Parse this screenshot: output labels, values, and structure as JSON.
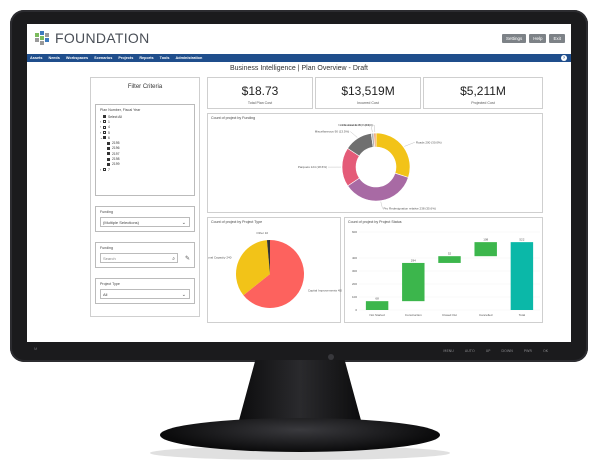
{
  "app": {
    "logo_text": "FOUNDATION",
    "top_buttons": [
      "Settings",
      "Help",
      "Exit"
    ],
    "nav": [
      "Assets",
      "Needs",
      "Workspaces",
      "Scenarios",
      "Projects",
      "Reports",
      "Tools",
      "Administration"
    ],
    "help_icon": "?"
  },
  "monitor": {
    "logo": "M",
    "buttons": [
      "MENU",
      "AUTO",
      "UP",
      "DOWN",
      "PWR",
      "OK"
    ]
  },
  "page": {
    "title": "Business Intelligence | Plan Overview - Draft"
  },
  "filter": {
    "title": "Filter Criteria",
    "tree_label": "Plan Number, Fiscal Year",
    "tree": [
      {
        "label": "Select All",
        "indent": 0,
        "checked": true,
        "arrow": ""
      },
      {
        "label": "1",
        "indent": 0,
        "checked": false,
        "arrow": "›"
      },
      {
        "label": "4",
        "indent": 0,
        "checked": false,
        "arrow": "›"
      },
      {
        "label": "5",
        "indent": 0,
        "checked": false,
        "arrow": "›"
      },
      {
        "label": "6",
        "indent": 0,
        "checked": true,
        "arrow": "⌄"
      },
      {
        "label": "2195",
        "indent": 1,
        "checked": true,
        "arrow": ""
      },
      {
        "label": "2196",
        "indent": 1,
        "checked": true,
        "arrow": ""
      },
      {
        "label": "2197",
        "indent": 1,
        "checked": true,
        "arrow": ""
      },
      {
        "label": "2198",
        "indent": 1,
        "checked": true,
        "arrow": ""
      },
      {
        "label": "2199",
        "indent": 1,
        "checked": true,
        "arrow": ""
      },
      {
        "label": "7",
        "indent": 0,
        "checked": false,
        "arrow": "›"
      }
    ],
    "funding_label": "Funding",
    "funding_value": "(Multiple Selections)",
    "funding_search_label": "Funding",
    "search_placeholder": "Search",
    "project_type_label": "Project Type",
    "project_type_value": "All"
  },
  "kpis": [
    {
      "value": "$18.73",
      "label": "Total Plan Cost"
    },
    {
      "value": "$13,519M",
      "label": "Incurred Cost"
    },
    {
      "value": "$5,211M",
      "label": "Projected Cost"
    }
  ],
  "charts": {
    "funding_title": "Count of project by Funding",
    "type_title": "Count of project by Project Type",
    "status_title": "Count of project by Project Status"
  },
  "chart_data": [
    {
      "type": "pie",
      "title": "Count of project by Funding",
      "labels": [
        "Roads",
        "Pro Redesignation relative",
        "Parquets",
        "Miscellaneous",
        "We-done 11",
        "Not Grantable 10"
      ],
      "values": [
        200,
        238,
        124,
        90,
        8,
        7
      ],
      "slice_labels": [
        "Roads 200 (30.0%)",
        "Pro Redesignation relative 238 (35.6%)",
        "Parquets 124 (18.6%)",
        "Miscellaneous 90 (13.5%)",
        "We-done 11 8 (1.2%)",
        "Not Grantable 10 7 (1.1%)"
      ],
      "colors": [
        "#f2c318",
        "#a86aa4",
        "#e45b78",
        "#6f6f6f",
        "#b6b6b6",
        "#f0a06a"
      ]
    },
    {
      "type": "pie",
      "title": "Count of project by Project Type",
      "labels": [
        "Capital Improvements",
        "Additional Capacity",
        "Other"
      ],
      "values": [
        450,
        240,
        10
      ],
      "slice_labels": [
        "Capital Improvements 450",
        "Additional Capacity 240",
        "Other 10"
      ],
      "colors": [
        "#fd625e",
        "#f2c318",
        "#333333"
      ]
    },
    {
      "type": "bar",
      "title": "Count of project by Project Status",
      "categories": [
        "Not Started",
        "Construction",
        "Closed Out",
        "Cancelled",
        "Total"
      ],
      "values": [
        68,
        294,
        52,
        108,
        522
      ],
      "data_labels": [
        "68",
        "294",
        "52",
        "108",
        "522"
      ],
      "ylim": [
        0,
        600
      ],
      "yticks": [
        0,
        100,
        200,
        300,
        400,
        600
      ],
      "colors": [
        "#3cb64c",
        "#3cb64c",
        "#3cb64c",
        "#3cb64c",
        "#0bb8a8"
      ]
    }
  ]
}
